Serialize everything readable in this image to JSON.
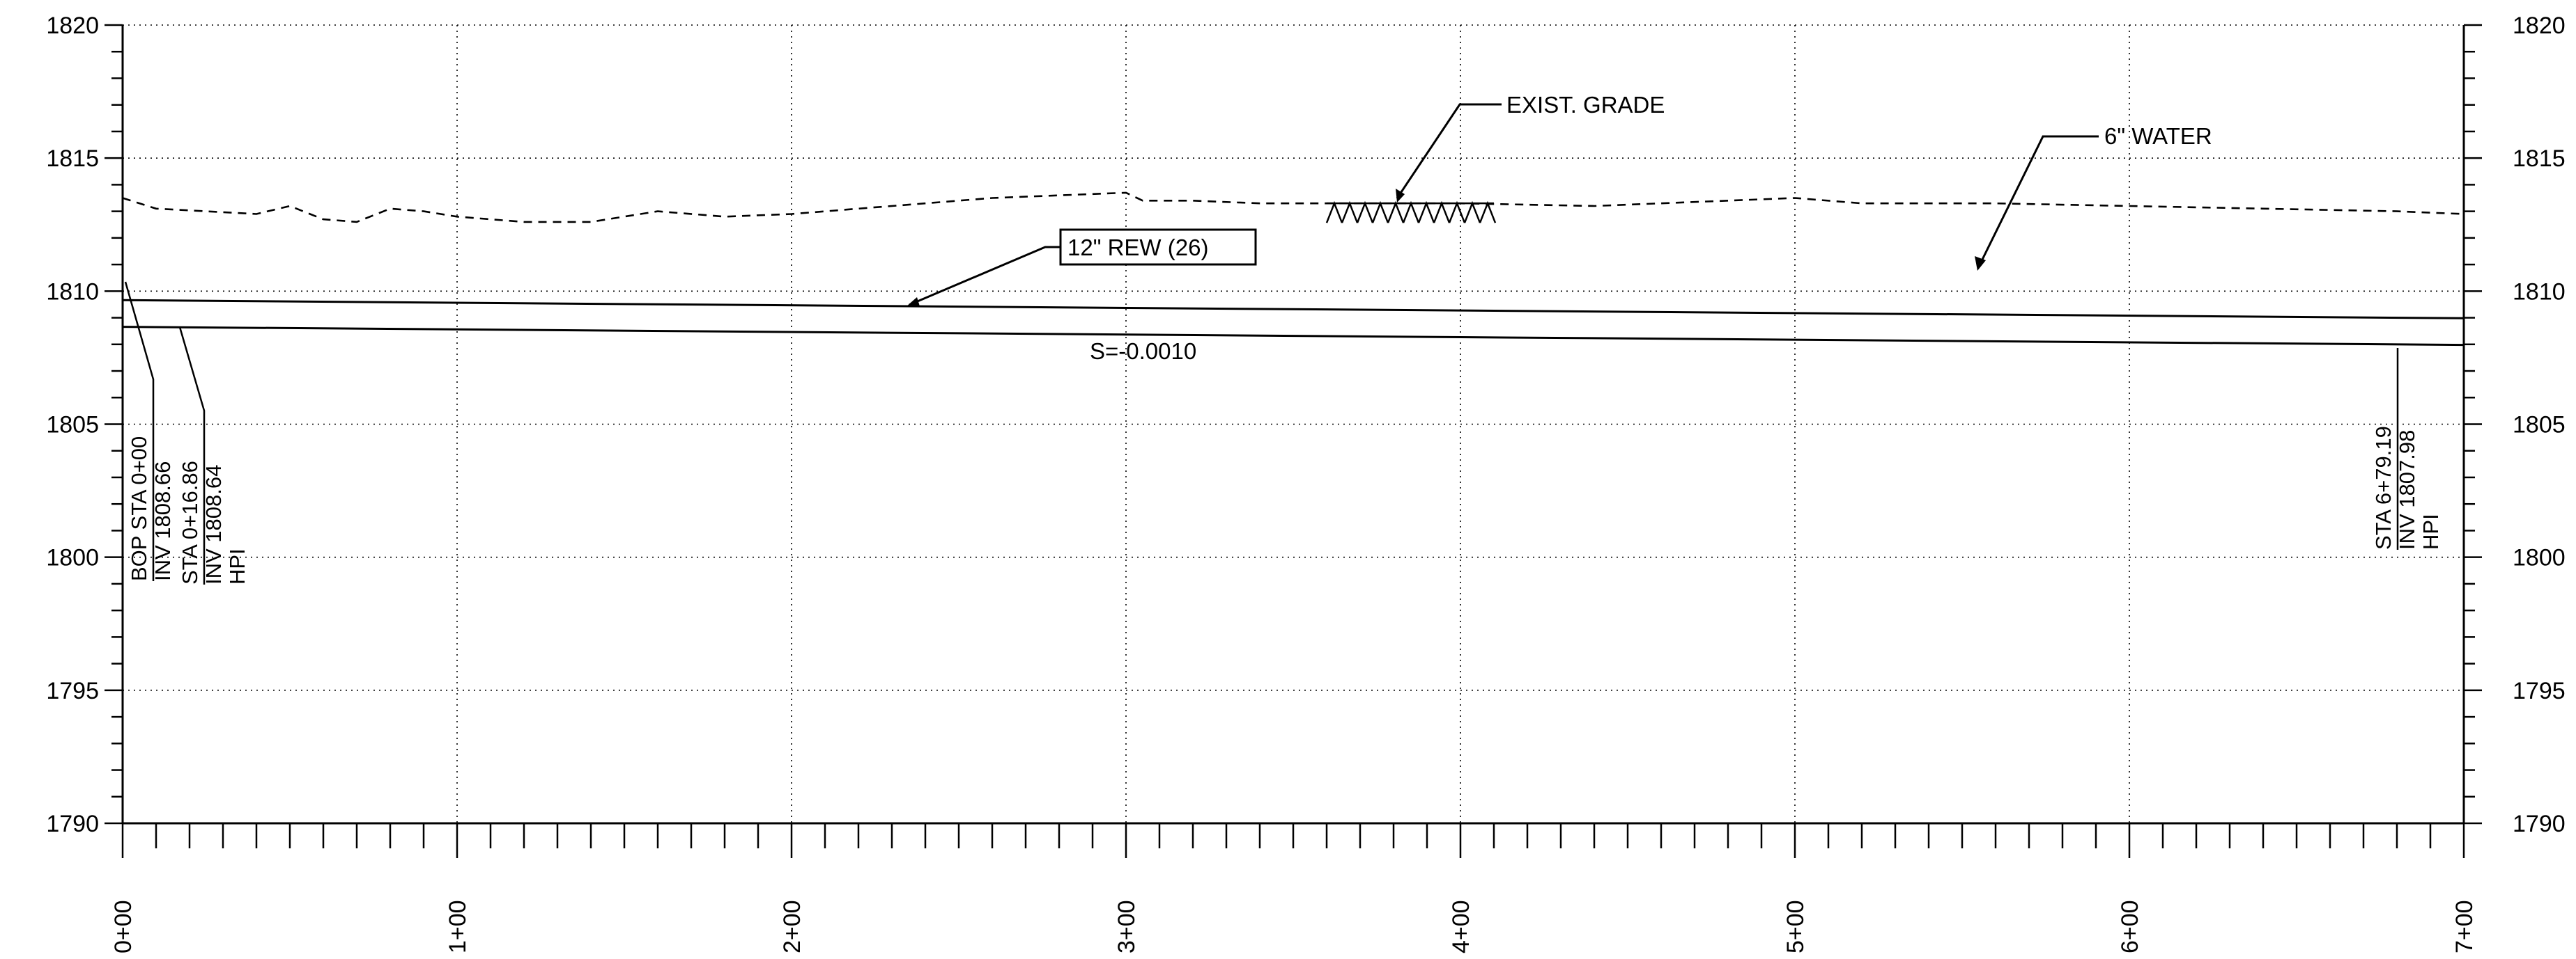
{
  "chart_data": {
    "type": "line",
    "x_range": [
      0,
      700
    ],
    "ylim": [
      1790,
      1820
    ],
    "y_ticks": [
      1790,
      1795,
      1800,
      1805,
      1810,
      1815,
      1820
    ],
    "y_tick_labels": [
      "1790",
      "1795",
      "1800",
      "1805",
      "1810",
      "1815",
      "1820"
    ],
    "x_ticks": [
      0,
      100,
      200,
      300,
      400,
      500,
      600,
      700
    ],
    "x_tick_labels": [
      "0+00",
      "1+00",
      "2+00",
      "3+00",
      "4+00",
      "5+00",
      "6+00",
      "7+00"
    ],
    "grid": true,
    "series": [
      {
        "name": "EXIST. GRADE",
        "style": "dashed",
        "x": [
          0,
          10,
          25,
          40,
          50,
          60,
          70,
          80,
          90,
          100,
          120,
          140,
          160,
          180,
          200,
          220,
          240,
          260,
          280,
          300,
          305,
          320,
          340,
          360,
          380,
          400,
          440,
          480,
          500,
          520,
          560,
          600,
          640,
          680,
          700
        ],
        "y": [
          1813.5,
          1813.1,
          1813.0,
          1812.9,
          1813.2,
          1812.7,
          1812.6,
          1813.1,
          1813.0,
          1812.8,
          1812.6,
          1812.6,
          1813.0,
          1812.8,
          1812.9,
          1813.1,
          1813.3,
          1813.5,
          1813.6,
          1813.7,
          1813.4,
          1813.4,
          1813.3,
          1813.3,
          1813.3,
          1813.3,
          1813.2,
          1813.4,
          1813.5,
          1813.3,
          1813.3,
          1813.2,
          1813.1,
          1813.0,
          1812.9
        ]
      },
      {
        "name": "12\" REW (26)",
        "style": "solid",
        "role": "pipe-crown",
        "x": [
          0,
          700
        ],
        "y": [
          1809.66,
          1808.98
        ]
      },
      {
        "name": "S=-0.0010",
        "style": "solid",
        "role": "pipe-invert",
        "x": [
          0,
          700
        ],
        "y": [
          1808.66,
          1807.98
        ]
      }
    ],
    "annotations": {
      "exist_grade": "EXIST. GRADE",
      "water": "6\" WATER",
      "pipe": "12\" REW (26)",
      "slope": "S=-0.0010"
    },
    "station_callouts": [
      {
        "x": 10,
        "lines": [
          "BOP  STA 0+00",
          "INV  1808.66"
        ]
      },
      {
        "x": 25,
        "lines": [
          "STA 0+16.86",
          "INV  1808.64",
          "HPI"
        ]
      },
      {
        "x": 679,
        "lines": [
          "STA 6+79.19",
          "INV  1807.98",
          "HPI"
        ]
      }
    ]
  }
}
